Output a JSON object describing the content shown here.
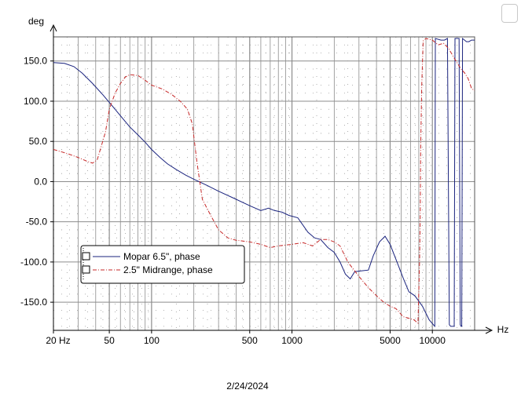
{
  "chart_data": {
    "type": "line",
    "date": "2/24/2024",
    "xlabel": "Hz",
    "ylabel": "deg",
    "xscale": "log",
    "xlim": [
      20,
      20000
    ],
    "ylim": [
      -185,
      180
    ],
    "grid": true,
    "legend_position": "lower-left",
    "x_ticks": [
      {
        "value": 20,
        "label": "20 Hz"
      },
      {
        "value": 50,
        "label": "50"
      },
      {
        "value": 100,
        "label": "100"
      },
      {
        "value": 500,
        "label": "500"
      },
      {
        "value": 1000,
        "label": "1000"
      },
      {
        "value": 5000,
        "label": "5000"
      },
      {
        "value": 10000,
        "label": "10000"
      }
    ],
    "y_ticks": [
      {
        "value": 150,
        "label": "150.0"
      },
      {
        "value": 100,
        "label": "100.0"
      },
      {
        "value": 50,
        "label": "50.0"
      },
      {
        "value": 0,
        "label": "0.0"
      },
      {
        "value": -50,
        "label": "-50.0"
      },
      {
        "value": -100,
        "label": "-100.0"
      },
      {
        "value": -150,
        "label": "-150.0"
      }
    ],
    "series": [
      {
        "name": "Mopar 6.5\", phase",
        "color": "#1a237e",
        "dash": "solid",
        "points": [
          [
            20,
            148
          ],
          [
            24,
            147
          ],
          [
            28,
            143
          ],
          [
            32,
            135
          ],
          [
            38,
            122
          ],
          [
            45,
            108
          ],
          [
            52,
            95
          ],
          [
            60,
            82
          ],
          [
            70,
            68
          ],
          [
            80,
            58
          ],
          [
            90,
            49
          ],
          [
            100,
            40
          ],
          [
            115,
            30
          ],
          [
            130,
            22
          ],
          [
            150,
            15
          ],
          [
            175,
            8
          ],
          [
            200,
            3
          ],
          [
            250,
            -5
          ],
          [
            300,
            -12
          ],
          [
            400,
            -22
          ],
          [
            500,
            -30
          ],
          [
            600,
            -36
          ],
          [
            680,
            -33
          ],
          [
            750,
            -36
          ],
          [
            850,
            -38
          ],
          [
            950,
            -42
          ],
          [
            1100,
            -45
          ],
          [
            1300,
            -63
          ],
          [
            1450,
            -70
          ],
          [
            1600,
            -72
          ],
          [
            1800,
            -82
          ],
          [
            2000,
            -88
          ],
          [
            2200,
            -100
          ],
          [
            2400,
            -115
          ],
          [
            2600,
            -121
          ],
          [
            2800,
            -112
          ],
          [
            3100,
            -111
          ],
          [
            3500,
            -110
          ],
          [
            3800,
            -92
          ],
          [
            4200,
            -75
          ],
          [
            4600,
            -68
          ],
          [
            5000,
            -78
          ],
          [
            5600,
            -100
          ],
          [
            6200,
            -120
          ],
          [
            6800,
            -137
          ],
          [
            7500,
            -142
          ],
          [
            8500,
            -155
          ],
          [
            9500,
            -172
          ],
          [
            10400,
            -180
          ],
          [
            10500,
            178
          ],
          [
            11500,
            176
          ],
          [
            12200,
            176
          ],
          [
            12800,
            178
          ],
          [
            13200,
            -178
          ],
          [
            13500,
            -180
          ],
          [
            14300,
            -180
          ],
          [
            14500,
            178
          ],
          [
            15500,
            178
          ],
          [
            15800,
            -178
          ],
          [
            16000,
            -180
          ],
          [
            16200,
            -180
          ],
          [
            16400,
            178
          ],
          [
            17500,
            174
          ],
          [
            18200,
            174
          ],
          [
            19000,
            176
          ],
          [
            20000,
            176
          ]
        ]
      },
      {
        "name": "2.5\" Midrange, phase",
        "color": "#c62828",
        "dash": "dashdot",
        "points": [
          [
            20,
            40
          ],
          [
            25,
            35
          ],
          [
            30,
            30
          ],
          [
            35,
            25
          ],
          [
            38,
            23
          ],
          [
            41,
            27
          ],
          [
            44,
            45
          ],
          [
            47,
            62
          ],
          [
            50,
            90
          ],
          [
            55,
            110
          ],
          [
            60,
            122
          ],
          [
            65,
            130
          ],
          [
            70,
            133
          ],
          [
            80,
            132
          ],
          [
            90,
            126
          ],
          [
            100,
            120
          ],
          [
            120,
            115
          ],
          [
            140,
            108
          ],
          [
            160,
            100
          ],
          [
            180,
            90
          ],
          [
            195,
            72
          ],
          [
            210,
            25
          ],
          [
            230,
            -22
          ],
          [
            260,
            -40
          ],
          [
            300,
            -60
          ],
          [
            350,
            -70
          ],
          [
            400,
            -73
          ],
          [
            500,
            -75
          ],
          [
            600,
            -78
          ],
          [
            700,
            -82
          ],
          [
            800,
            -80
          ],
          [
            1000,
            -78
          ],
          [
            1200,
            -76
          ],
          [
            1400,
            -80
          ],
          [
            1600,
            -72
          ],
          [
            1800,
            -72
          ],
          [
            2000,
            -75
          ],
          [
            2200,
            -80
          ],
          [
            2500,
            -100
          ],
          [
            3000,
            -118
          ],
          [
            3500,
            -132
          ],
          [
            4000,
            -142
          ],
          [
            4500,
            -150
          ],
          [
            5000,
            -155
          ],
          [
            5500,
            -158
          ],
          [
            6200,
            -168
          ],
          [
            6800,
            -170
          ],
          [
            7400,
            -172
          ],
          [
            7900,
            -176
          ],
          [
            8100,
            -100
          ],
          [
            8200,
            -40
          ],
          [
            8250,
            40
          ],
          [
            8400,
            120
          ],
          [
            8600,
            175
          ],
          [
            9000,
            178
          ],
          [
            10000,
            176
          ],
          [
            11000,
            170
          ],
          [
            12000,
            172
          ],
          [
            13000,
            166
          ],
          [
            14500,
            152
          ],
          [
            16000,
            140
          ],
          [
            17000,
            135
          ],
          [
            18000,
            128
          ],
          [
            19000,
            116
          ],
          [
            20000,
            113
          ]
        ]
      }
    ]
  }
}
